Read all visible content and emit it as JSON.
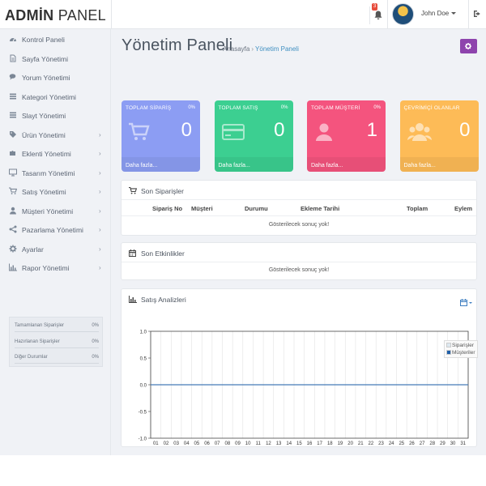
{
  "header": {
    "brand_bold": "ADMİN",
    "brand_light": "PANEL",
    "notification_count": "3",
    "user_name": "John Doe"
  },
  "sidebar": {
    "items": [
      {
        "label": "Kontrol Paneli",
        "icon": "gauge-icon",
        "has_submenu": false
      },
      {
        "label": "Sayfa Yönetimi",
        "icon": "file-icon",
        "has_submenu": false
      },
      {
        "label": "Yorum Yönetimi",
        "icon": "comments-icon",
        "has_submenu": false
      },
      {
        "label": "Kategori Yönetimi",
        "icon": "list-icon",
        "has_submenu": false
      },
      {
        "label": "Slayt Yönetimi",
        "icon": "list-icon",
        "has_submenu": false
      },
      {
        "label": "Ürün Yönetimi",
        "icon": "tags-icon",
        "has_submenu": true
      },
      {
        "label": "Eklenti Yönetimi",
        "icon": "puzzle-icon",
        "has_submenu": true
      },
      {
        "label": "Tasarım Yönetimi",
        "icon": "monitor-icon",
        "has_submenu": true
      },
      {
        "label": "Satış Yönetimi",
        "icon": "cart-icon",
        "has_submenu": true
      },
      {
        "label": "Müşteri Yönetimi",
        "icon": "user-icon",
        "has_submenu": true
      },
      {
        "label": "Pazarlama Yönetimi",
        "icon": "share-icon",
        "has_submenu": true
      },
      {
        "label": "Ayarlar",
        "icon": "gear-icon",
        "has_submenu": true
      },
      {
        "label": "Rapor Yönetimi",
        "icon": "bar-chart-icon",
        "has_submenu": true
      }
    ],
    "stats": [
      {
        "label": "Tamamlanan Siparişler",
        "value": "0%"
      },
      {
        "label": "Hazırlanan Siparişler",
        "value": "0%"
      },
      {
        "label": "Diğer Durumlar",
        "value": "0%"
      }
    ]
  },
  "page": {
    "title": "Yönetim Paneli",
    "breadcrumb_home": "Anasayfa",
    "breadcrumb_current": "Yönetim Paneli"
  },
  "cards": [
    {
      "title": "TOPLAM SİPARİŞ",
      "percent": "0%",
      "value": "0",
      "more": "Daha fazla...",
      "color": "#8c9df3",
      "icon": "cart-icon"
    },
    {
      "title": "TOPLAM SATIŞ",
      "percent": "0%",
      "value": "0",
      "more": "Daha fazla...",
      "color": "#3ccf91",
      "icon": "credit-card-icon"
    },
    {
      "title": "TOPLAM MÜŞTERİ",
      "percent": "0%",
      "value": "1",
      "more": "Daha fazla...",
      "color": "#f4547e",
      "icon": "user-icon"
    },
    {
      "title": "ÇEVRİMİÇİ OLANLAR",
      "percent": "",
      "value": "0",
      "more": "Daha fazla...",
      "color": "#fdbb57",
      "icon": "users-icon"
    }
  ],
  "orders": {
    "title": "Son Siparişler",
    "columns": [
      "Sipariş No",
      "Müşteri",
      "Durumu",
      "Ekleme Tarihi",
      "Toplam",
      "Eylem"
    ],
    "empty": "Gösterilecek sonuç yok!"
  },
  "activities": {
    "title": "Son Etkinlikler",
    "empty": "Gösterilecek sonuç yok!"
  },
  "chart_panel": {
    "title": "Satış Analizleri"
  },
  "chart_data": {
    "type": "line",
    "title": "",
    "xlabel": "",
    "ylabel": "",
    "x": [
      "01",
      "02",
      "03",
      "04",
      "05",
      "06",
      "07",
      "08",
      "09",
      "10",
      "11",
      "12",
      "13",
      "14",
      "15",
      "16",
      "17",
      "18",
      "19",
      "20",
      "21",
      "22",
      "23",
      "24",
      "25",
      "26",
      "27",
      "28",
      "29",
      "30",
      "31"
    ],
    "ylim": [
      -1.0,
      1.0
    ],
    "yticks": [
      "1.0",
      "0.5",
      "0.0",
      "-0.5",
      "-1.0"
    ],
    "grid": true,
    "legend_position": "top-right",
    "series": [
      {
        "name": "Siparişler",
        "color": "#dde8f0",
        "values": [
          0,
          0,
          0,
          0,
          0,
          0,
          0,
          0,
          0,
          0,
          0,
          0,
          0,
          0,
          0,
          0,
          0,
          0,
          0,
          0,
          0,
          0,
          0,
          0,
          0,
          0,
          0,
          0,
          0,
          0,
          0
        ]
      },
      {
        "name": "Müşteriler",
        "color": "#1f5fa8",
        "values": [
          0,
          0,
          0,
          0,
          0,
          0,
          0,
          0,
          0,
          0,
          0,
          0,
          0,
          0,
          0,
          0,
          0,
          0,
          0,
          0,
          0,
          0,
          0,
          0,
          0,
          0,
          0,
          0,
          0,
          0,
          0
        ]
      }
    ]
  }
}
